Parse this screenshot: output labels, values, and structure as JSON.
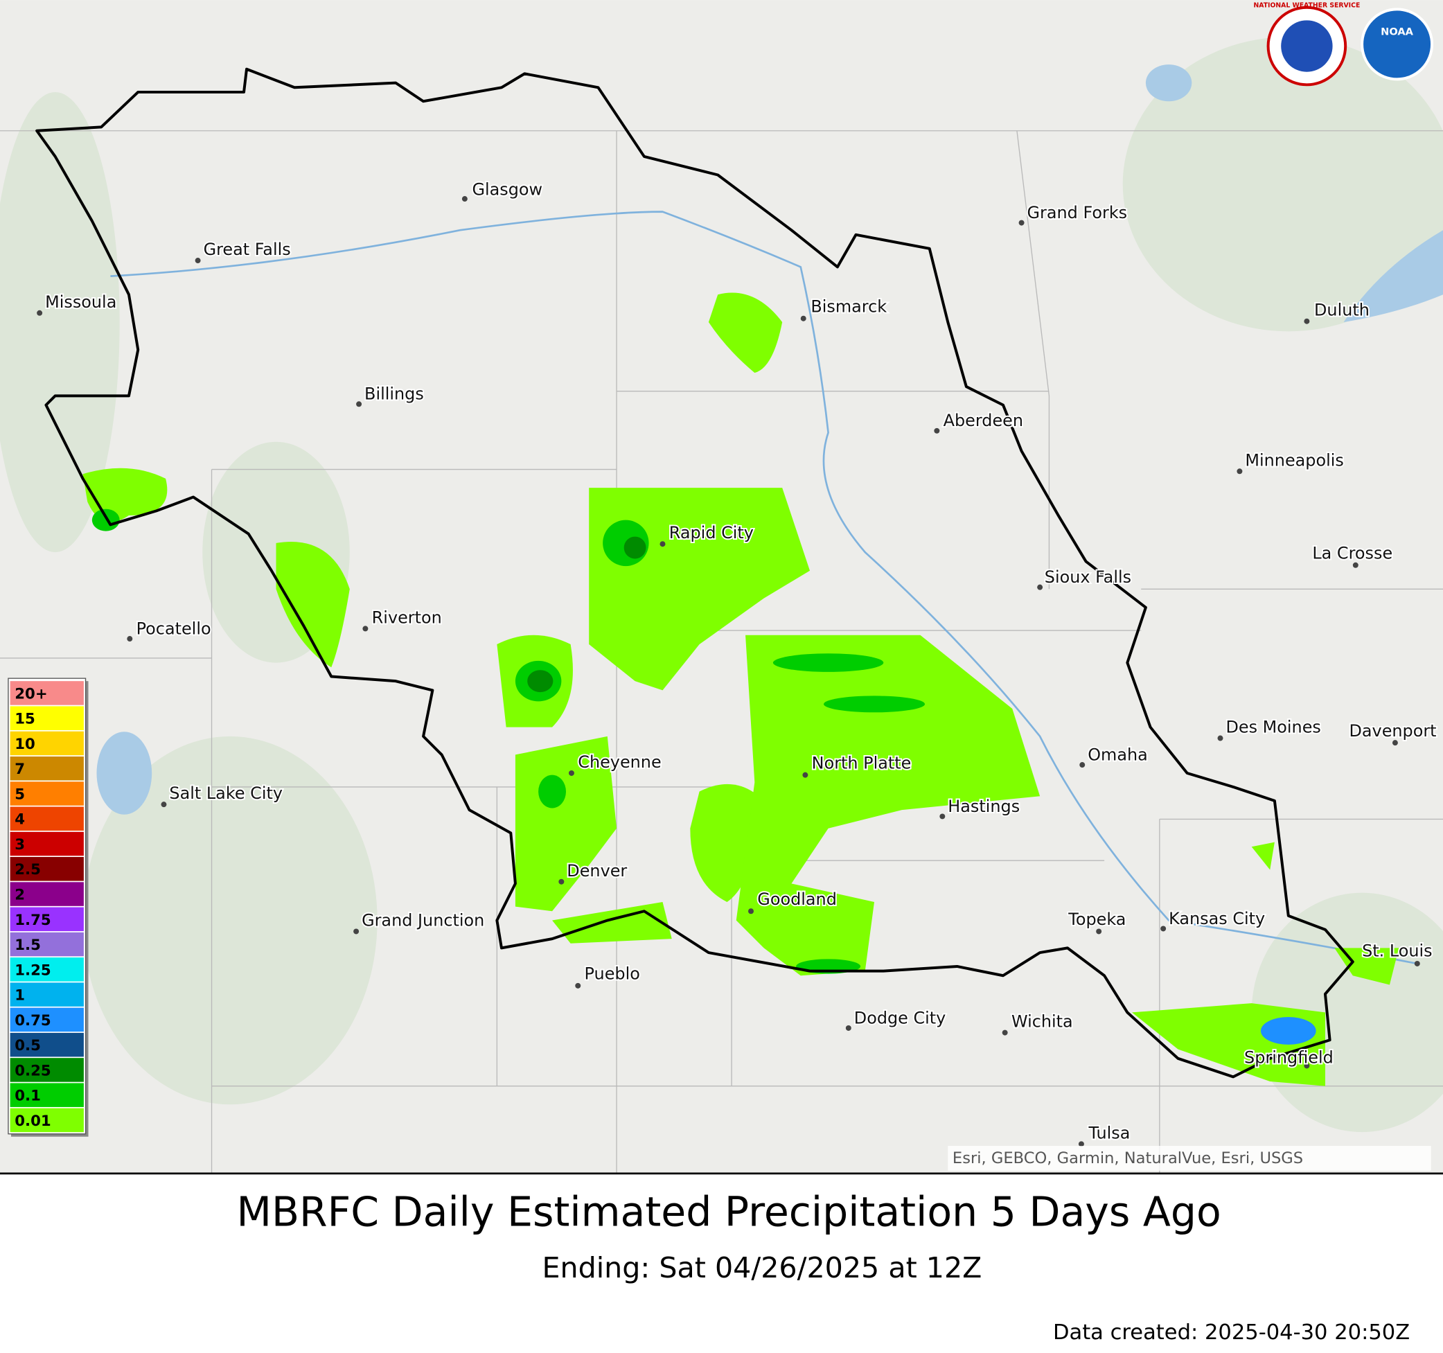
{
  "title": "MBRFC Daily Estimated Precipitation 5 Days Ago",
  "subtitle": "Ending: Sat 04/26/2025 at 12Z",
  "data_created": "Data created: 2025-04-30 20:50Z",
  "attribution": "Esri, GEBCO, Garmin, NaturalVue, Esri, USGS",
  "logos": {
    "nws": "NATIONAL WEATHER SERVICE",
    "noaa": "NOAA"
  },
  "cities": [
    "Glasgow",
    "Grand Forks",
    "Great Falls",
    "Missoula",
    "Bismarck",
    "Duluth",
    "Billings",
    "Aberdeen",
    "Minneapolis",
    "Rapid City",
    "La Crosse",
    "Sioux Falls",
    "Riverton",
    "Pocatello",
    "Des Moines",
    "Davenport",
    "Omaha",
    "Cheyenne",
    "North Platte",
    "Salt Lake City",
    "Hastings",
    "Denver",
    "Goodland",
    "Grand Junction",
    "Topeka",
    "Kansas City",
    "St. Louis",
    "Pueblo",
    "Dodge City",
    "Wichita",
    "Springfield",
    "Tulsa"
  ],
  "legend": [
    {
      "label": "20+",
      "color": "#f88a8a"
    },
    {
      "label": "15",
      "color": "#ffff00"
    },
    {
      "label": "10",
      "color": "#ffd400"
    },
    {
      "label": "7",
      "color": "#cc8800"
    },
    {
      "label": "5",
      "color": "#ff7f00"
    },
    {
      "label": "4",
      "color": "#ee4400"
    },
    {
      "label": "3",
      "color": "#cc0000"
    },
    {
      "label": "2.5",
      "color": "#880000"
    },
    {
      "label": "2",
      "color": "#8b008b"
    },
    {
      "label": "1.75",
      "color": "#9932ff"
    },
    {
      "label": "1.5",
      "color": "#9370db"
    },
    {
      "label": "1.25",
      "color": "#00eeee"
    },
    {
      "label": "1",
      "color": "#00b2ee"
    },
    {
      "label": "0.75",
      "color": "#1e90ff"
    },
    {
      "label": "0.5",
      "color": "#104e8b"
    },
    {
      "label": "0.25",
      "color": "#008b00"
    },
    {
      "label": "0.1",
      "color": "#00cd00"
    },
    {
      "label": "0.01",
      "color": "#7fff00"
    }
  ]
}
